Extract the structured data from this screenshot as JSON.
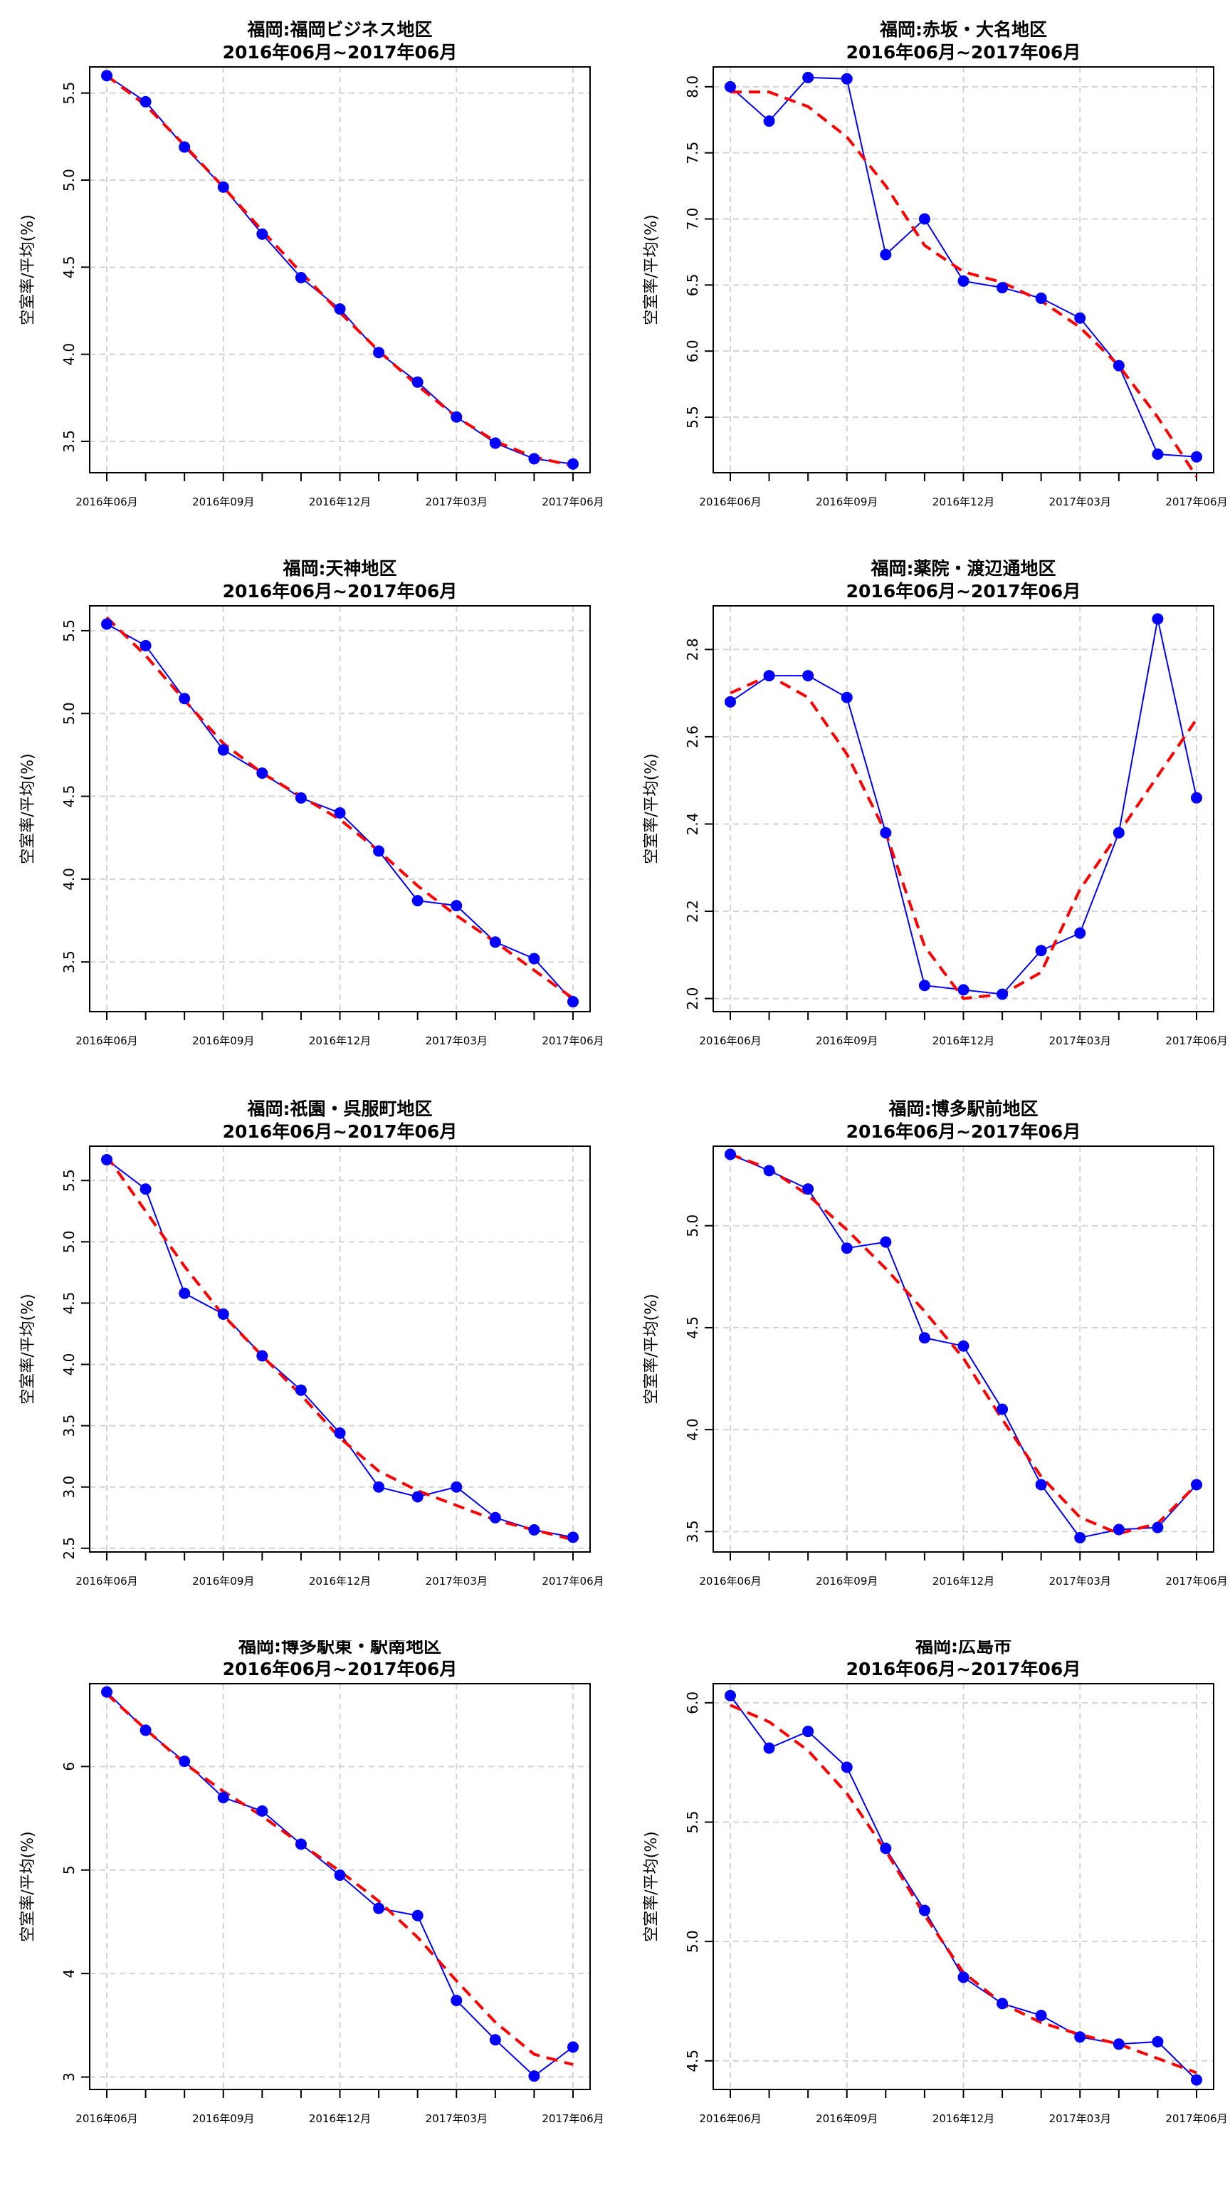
{
  "x_axis_labels": [
    "2016年06月",
    "2016年09月",
    "2016年12月",
    "2017年03月",
    "2017年06月"
  ],
  "colors": {
    "observed": "#0000ff",
    "smooth": "#ff0000",
    "grid": "#d3d3d3"
  },
  "chart_data": [
    {
      "type": "line",
      "title": "福岡:福岡ビジネス地区",
      "subtitle": "2016年06月~2017年06月",
      "ylabel": "空室率/平均(%)",
      "ylim": [
        3.32,
        5.65
      ],
      "yticks": [
        "3.5",
        "4.0",
        "4.5",
        "5.0",
        "5.5"
      ],
      "categories": [
        "2016-06",
        "2016-07",
        "2016-08",
        "2016-09",
        "2016-10",
        "2016-11",
        "2016-12",
        "2017-01",
        "2017-02",
        "2017-03",
        "2017-04",
        "2017-05",
        "2017-06"
      ],
      "series": [
        {
          "values": [
            5.6,
            5.45,
            5.19,
            4.96,
            4.69,
            4.44,
            4.26,
            4.01,
            3.84,
            3.64,
            3.49,
            3.4,
            3.37
          ]
        },
        {
          "values": [
            5.6,
            5.43,
            5.2,
            4.96,
            4.71,
            4.47,
            4.24,
            4.02,
            3.82,
            3.64,
            3.5,
            3.41,
            3.36
          ]
        }
      ]
    },
    {
      "type": "line",
      "title": "福岡:赤坂・大名地区",
      "subtitle": "2016年06月~2017年06月",
      "ylabel": "空室率/平均(%)",
      "ylim": [
        5.08,
        8.15
      ],
      "yticks": [
        "5.5",
        "6.0",
        "6.5",
        "7.0",
        "7.5",
        "8.0"
      ],
      "categories": [
        "2016-06",
        "2016-07",
        "2016-08",
        "2016-09",
        "2016-10",
        "2016-11",
        "2016-12",
        "2017-01",
        "2017-02",
        "2017-03",
        "2017-04",
        "2017-05",
        "2017-06"
      ],
      "series": [
        {
          "values": [
            8.0,
            7.74,
            8.07,
            8.06,
            6.73,
            7.0,
            6.53,
            6.48,
            6.4,
            6.25,
            5.89,
            5.22,
            5.2
          ]
        },
        {
          "values": [
            7.96,
            7.96,
            7.85,
            7.62,
            7.25,
            6.8,
            6.6,
            6.52,
            6.38,
            6.18,
            5.89,
            5.5,
            5.05
          ]
        }
      ]
    },
    {
      "type": "line",
      "title": "福岡:天神地区",
      "subtitle": "2016年06月~2017年06月",
      "ylabel": "空室率/平均(%)",
      "ylim": [
        3.2,
        5.65
      ],
      "yticks": [
        "3.5",
        "4.0",
        "4.5",
        "5.0",
        "5.5"
      ],
      "categories": [
        "2016-06",
        "2016-07",
        "2016-08",
        "2016-09",
        "2016-10",
        "2016-11",
        "2016-12",
        "2017-01",
        "2017-02",
        "2017-03",
        "2017-04",
        "2017-05",
        "2017-06"
      ],
      "series": [
        {
          "values": [
            5.54,
            5.41,
            5.09,
            4.78,
            4.64,
            4.49,
            4.4,
            4.17,
            3.87,
            3.84,
            3.62,
            3.52,
            3.26
          ]
        },
        {
          "values": [
            5.58,
            5.35,
            5.08,
            4.82,
            4.64,
            4.5,
            4.36,
            4.17,
            3.96,
            3.78,
            3.62,
            3.45,
            3.28
          ]
        }
      ]
    },
    {
      "type": "line",
      "title": "福岡:薬院・渡辺通地区",
      "subtitle": "2016年06月~2017年06月",
      "ylabel": "空室率/平均(%)",
      "ylim": [
        1.97,
        2.9
      ],
      "yticks": [
        "2.0",
        "2.2",
        "2.4",
        "2.6",
        "2.8"
      ],
      "categories": [
        "2016-06",
        "2016-07",
        "2016-08",
        "2016-09",
        "2016-10",
        "2016-11",
        "2016-12",
        "2017-01",
        "2017-02",
        "2017-03",
        "2017-04",
        "2017-05",
        "2017-06"
      ],
      "series": [
        {
          "values": [
            2.68,
            2.74,
            2.74,
            2.69,
            2.38,
            2.03,
            2.02,
            2.01,
            2.11,
            2.15,
            2.38,
            2.87,
            2.46
          ]
        },
        {
          "values": [
            2.7,
            2.74,
            2.69,
            2.56,
            2.38,
            2.12,
            2.0,
            2.01,
            2.06,
            2.25,
            2.38,
            2.51,
            2.64
          ]
        }
      ]
    },
    {
      "type": "line",
      "title": "福岡:祇園・呉服町地区",
      "subtitle": "2016年06月~2017年06月",
      "ylabel": "空室率/平均(%)",
      "ylim": [
        2.47,
        5.78
      ],
      "yticks": [
        "2.5",
        "3.0",
        "3.5",
        "4.0",
        "4.5",
        "5.0",
        "5.5"
      ],
      "categories": [
        "2016-06",
        "2016-07",
        "2016-08",
        "2016-09",
        "2016-10",
        "2016-11",
        "2016-12",
        "2017-01",
        "2017-02",
        "2017-03",
        "2017-04",
        "2017-05",
        "2017-06"
      ],
      "series": [
        {
          "values": [
            5.67,
            5.43,
            4.58,
            4.41,
            4.07,
            3.79,
            3.44,
            3.0,
            2.92,
            3.0,
            2.75,
            2.65,
            2.59
          ]
        },
        {
          "values": [
            5.7,
            5.25,
            4.8,
            4.4,
            4.07,
            3.75,
            3.4,
            3.13,
            2.97,
            2.85,
            2.73,
            2.65,
            2.57
          ]
        }
      ]
    },
    {
      "type": "line",
      "title": "福岡:博多駅前地区",
      "subtitle": "2016年06月~2017年06月",
      "ylabel": "空室率/平均(%)",
      "ylim": [
        3.4,
        5.39
      ],
      "yticks": [
        "3.5",
        "4.0",
        "4.5",
        "5.0"
      ],
      "categories": [
        "2016-06",
        "2016-07",
        "2016-08",
        "2016-09",
        "2016-10",
        "2016-11",
        "2016-12",
        "2017-01",
        "2017-02",
        "2017-03",
        "2017-04",
        "2017-05",
        "2017-06"
      ],
      "series": [
        {
          "values": [
            5.35,
            5.27,
            5.18,
            4.89,
            4.92,
            4.45,
            4.41,
            4.1,
            3.73,
            3.47,
            3.51,
            3.52,
            3.73
          ]
        },
        {
          "values": [
            5.35,
            5.28,
            5.15,
            4.98,
            4.79,
            4.58,
            4.35,
            4.05,
            3.77,
            3.57,
            3.49,
            3.54,
            3.73
          ]
        }
      ]
    },
    {
      "type": "line",
      "title": "福岡:博多駅東・駅南地区",
      "subtitle": "2016年06月~2017年06月",
      "ylabel": "空室率/平均(%)",
      "ylim": [
        2.88,
        6.8
      ],
      "yticks": [
        "3",
        "4",
        "5",
        "6"
      ],
      "categories": [
        "2016-06",
        "2016-07",
        "2016-08",
        "2016-09",
        "2016-10",
        "2016-11",
        "2016-12",
        "2017-01",
        "2017-02",
        "2017-03",
        "2017-04",
        "2017-05",
        "2017-06"
      ],
      "series": [
        {
          "values": [
            6.72,
            6.35,
            6.05,
            5.7,
            5.57,
            5.25,
            4.95,
            4.63,
            4.56,
            3.74,
            3.36,
            3.01,
            3.29
          ]
        },
        {
          "values": [
            6.7,
            6.36,
            6.03,
            5.76,
            5.52,
            5.25,
            4.99,
            4.7,
            4.35,
            3.93,
            3.53,
            3.22,
            3.12
          ]
        }
      ]
    },
    {
      "type": "line",
      "title": "福岡:広島市",
      "subtitle": "2016年06月~2017年06月",
      "ylabel": "空室率/平均(%)",
      "ylim": [
        4.38,
        6.08
      ],
      "yticks": [
        "4.5",
        "5.0",
        "5.5",
        "6.0"
      ],
      "categories": [
        "2016-06",
        "2016-07",
        "2016-08",
        "2016-09",
        "2016-10",
        "2016-11",
        "2016-12",
        "2017-01",
        "2017-02",
        "2017-03",
        "2017-04",
        "2017-05",
        "2017-06"
      ],
      "series": [
        {
          "values": [
            6.03,
            5.81,
            5.88,
            5.73,
            5.39,
            5.13,
            4.85,
            4.74,
            4.69,
            4.6,
            4.57,
            4.58,
            4.42
          ]
        },
        {
          "values": [
            5.99,
            5.92,
            5.8,
            5.62,
            5.38,
            5.11,
            4.87,
            4.74,
            4.66,
            4.61,
            4.57,
            4.51,
            4.45
          ]
        }
      ]
    }
  ]
}
